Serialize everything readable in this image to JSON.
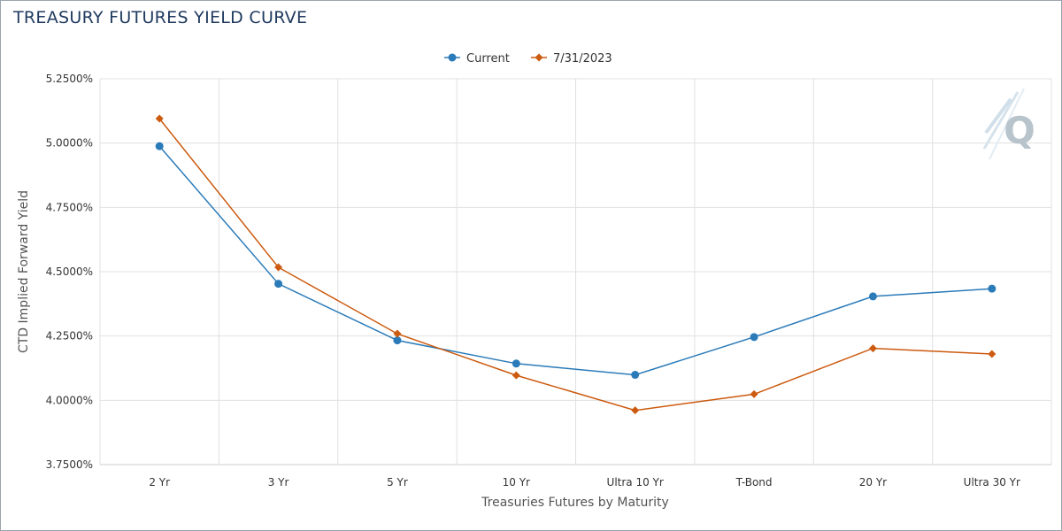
{
  "chart_data": {
    "type": "line",
    "title": "TREASURY FUTURES YIELD CURVE",
    "xlabel": "Treasuries Futures by Maturity",
    "ylabel": "CTD Implied Forward Yield",
    "categories": [
      "2 Yr",
      "3 Yr",
      "5 Yr",
      "10 Yr",
      "Ultra 10 Yr",
      "T-Bond",
      "20 Yr",
      "Ultra 30 Yr"
    ],
    "ylim": [
      3.75,
      5.25
    ],
    "yticks": [
      3.75,
      4.0,
      4.25,
      4.5,
      4.75,
      5.0,
      5.25
    ],
    "ytick_labels": [
      "3.7500%",
      "4.0000%",
      "4.2500%",
      "4.5000%",
      "4.7500%",
      "5.0000%",
      "5.2500%"
    ],
    "grid": true,
    "legend_position": "top-center",
    "series": [
      {
        "name": "Current",
        "color": "#2b7bb9",
        "marker": "circle",
        "values": [
          4.988,
          4.453,
          4.233,
          4.143,
          4.099,
          4.246,
          4.404,
          4.434
        ]
      },
      {
        "name": "7/31/2023",
        "color": "#cc5a0f",
        "marker": "diamond",
        "values": [
          5.095,
          4.517,
          4.259,
          4.097,
          3.961,
          4.024,
          4.202,
          4.18
        ]
      }
    ]
  },
  "logo": {
    "letter": "Q",
    "color": "#b8c4cc"
  }
}
